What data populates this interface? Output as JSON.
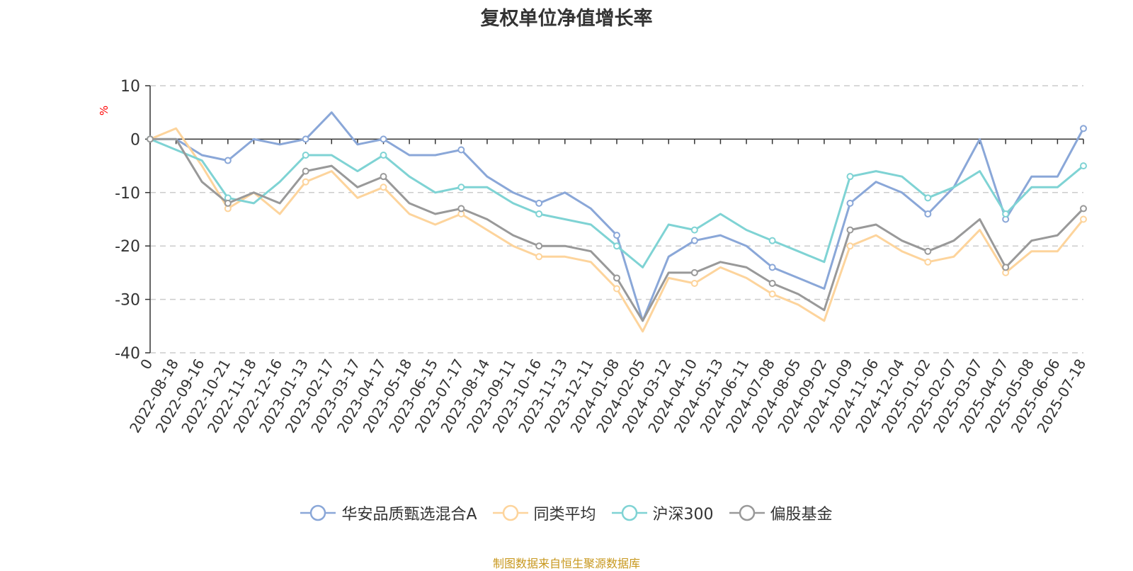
{
  "chart_data": {
    "type": "line",
    "title": "复权单位净值增长率",
    "ylabel": "%",
    "ylim": [
      -40,
      10
    ],
    "yticks": [
      10,
      0,
      -10,
      -20,
      -30,
      -40
    ],
    "grid": true,
    "legend_position": "bottom",
    "x_categories": [
      "0",
      "2022-08-18",
      "2022-09-16",
      "2022-10-21",
      "2022-11-18",
      "2022-12-16",
      "2023-01-13",
      "2023-02-17",
      "2023-03-17",
      "2023-04-17",
      "2023-05-18",
      "2023-06-15",
      "2023-07-17",
      "2023-08-14",
      "2023-09-11",
      "2023-10-16",
      "2023-11-13",
      "2023-12-11",
      "2024-01-08",
      "2024-02-05",
      "2024-03-12",
      "2024-04-10",
      "2024-05-13",
      "2024-06-11",
      "2024-07-08",
      "2024-08-05",
      "2024-09-02",
      "2024-10-09",
      "2024-11-06",
      "2024-12-04",
      "2025-01-02",
      "2025-02-07",
      "2025-03-07",
      "2025-04-07",
      "2025-05-08",
      "2025-06-06",
      "2025-07-18"
    ],
    "series": [
      {
        "name": "华安品质甄选混合A",
        "color": "#8aa7d8",
        "values": [
          0,
          0,
          -3,
          -4,
          0,
          -1,
          0,
          5,
          -1,
          0,
          -3,
          -3,
          -2,
          -7,
          -10,
          -12,
          -10,
          -13,
          -18,
          -34,
          -22,
          -19,
          -18,
          -20,
          -24,
          -26,
          -28,
          -12,
          -8,
          -10,
          -14,
          -9,
          0,
          -15,
          -7,
          -7,
          2
        ]
      },
      {
        "name": "同类平均",
        "color": "#fdd49c",
        "values": [
          0,
          2,
          -5,
          -13,
          -10,
          -14,
          -8,
          -6,
          -11,
          -9,
          -14,
          -16,
          -14,
          -17,
          -20,
          -22,
          -22,
          -23,
          -28,
          -36,
          -26,
          -27,
          -24,
          -26,
          -29,
          -31,
          -34,
          -20,
          -18,
          -21,
          -23,
          -22,
          -17,
          -25,
          -21,
          -21,
          -15
        ]
      },
      {
        "name": "沪深300",
        "color": "#7fd3d4",
        "values": [
          0,
          -2,
          -4,
          -11,
          -12,
          -8,
          -3,
          -3,
          -6,
          -3,
          -7,
          -10,
          -9,
          -9,
          -12,
          -14,
          -15,
          -16,
          -20,
          -24,
          -16,
          -17,
          -14,
          -17,
          -19,
          -21,
          -23,
          -7,
          -6,
          -7,
          -11,
          -9,
          -6,
          -14,
          -9,
          -9,
          -5
        ]
      },
      {
        "name": "偏股基金",
        "color": "#999999",
        "values": [
          0,
          0,
          -8,
          -12,
          -10,
          -12,
          -6,
          -5,
          -9,
          -7,
          -12,
          -14,
          -13,
          -15,
          -18,
          -20,
          -20,
          -21,
          -26,
          -34,
          -25,
          -25,
          -23,
          -24,
          -27,
          -29,
          -32,
          -17,
          -16,
          -19,
          -21,
          -19,
          -15,
          -24,
          -19,
          -18,
          -13
        ]
      }
    ]
  },
  "source_note": "制图数据来自恒生聚源数据库"
}
